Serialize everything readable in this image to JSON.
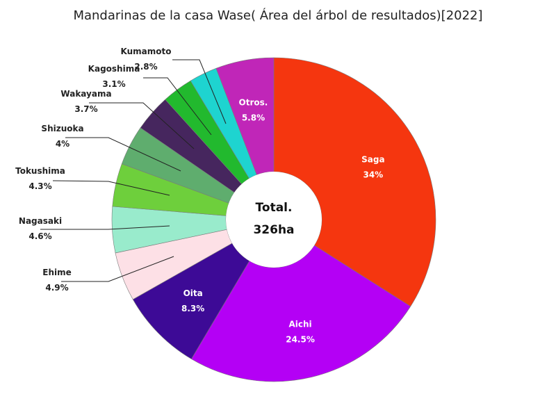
{
  "chart_data": {
    "type": "pie",
    "title": "Mandarinas de la casa Wase( Área del árbol de resultados)[2022]",
    "center_label": [
      "Total.",
      "326ha"
    ],
    "slices": [
      {
        "label": "Saga",
        "value": 34,
        "display": "34%",
        "color": "#f5360f"
      },
      {
        "label": "Aichi",
        "value": 24.5,
        "display": "24.5%",
        "color": "#b400f5"
      },
      {
        "label": "Oita",
        "value": 8.3,
        "display": "8.3%",
        "color": "#3d0a96"
      },
      {
        "label": "Ehime",
        "value": 4.9,
        "display": "4.9%",
        "color": "#fde0e6"
      },
      {
        "label": "Nagasaki",
        "value": 4.6,
        "display": "4.6%",
        "color": "#99ebcc"
      },
      {
        "label": "Tokushima",
        "value": 4.3,
        "display": "4.3%",
        "color": "#6ecf3c"
      },
      {
        "label": "Shizuoka",
        "value": 4,
        "display": "4%",
        "color": "#5fad6e"
      },
      {
        "label": "Wakayama",
        "value": 3.7,
        "display": "3.7%",
        "color": "#46265e"
      },
      {
        "label": "Kagoshima",
        "value": 3.1,
        "display": "3.1%",
        "color": "#22b92e"
      },
      {
        "label": "Kumamoto",
        "value": 2.8,
        "display": "2.8%",
        "color": "#1ed4d0"
      },
      {
        "label": "Otros.",
        "value": 5.8,
        "display": "5.8%",
        "color": "#c026b8"
      }
    ]
  }
}
